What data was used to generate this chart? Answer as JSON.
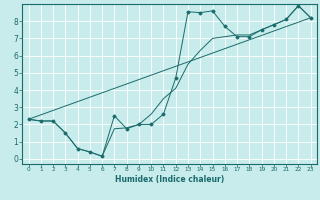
{
  "xlabel": "Humidex (Indice chaleur)",
  "bg_color": "#c8ebeb",
  "grid_color": "#ffffff",
  "line_color": "#1a6b6b",
  "axis_bg": "#336b6b",
  "xlim": [
    -0.5,
    23.5
  ],
  "ylim": [
    -0.3,
    9.0
  ],
  "xticks": [
    0,
    1,
    2,
    3,
    4,
    5,
    6,
    7,
    8,
    9,
    10,
    11,
    12,
    13,
    14,
    15,
    16,
    17,
    18,
    19,
    20,
    21,
    22,
    23
  ],
  "yticks": [
    0,
    1,
    2,
    3,
    4,
    5,
    6,
    7,
    8
  ],
  "line1_x": [
    0,
    1,
    2,
    3,
    4,
    5,
    6,
    7,
    8,
    9,
    10,
    11,
    12,
    13,
    14,
    15,
    16,
    17,
    18,
    19,
    20,
    21,
    22,
    23
  ],
  "line1_y": [
    2.3,
    2.2,
    2.2,
    1.5,
    0.6,
    0.4,
    0.15,
    2.5,
    1.75,
    2.0,
    2.0,
    2.6,
    4.7,
    8.55,
    8.5,
    8.6,
    7.7,
    7.1,
    7.1,
    7.5,
    7.8,
    8.1,
    8.9,
    8.2
  ],
  "line2_x": [
    0,
    1,
    2,
    3,
    4,
    5,
    6,
    7,
    8,
    9,
    10,
    11,
    12,
    13,
    14,
    15,
    16,
    17,
    18,
    19,
    20,
    21,
    22,
    23
  ],
  "line2_y": [
    2.3,
    2.2,
    2.2,
    1.5,
    0.6,
    0.4,
    0.15,
    1.75,
    1.8,
    2.0,
    2.6,
    3.5,
    4.1,
    5.5,
    6.3,
    7.0,
    7.1,
    7.2,
    7.2,
    7.5,
    7.8,
    8.1,
    8.9,
    8.2
  ],
  "line3_x": [
    0,
    23
  ],
  "line3_y": [
    2.3,
    8.2
  ]
}
